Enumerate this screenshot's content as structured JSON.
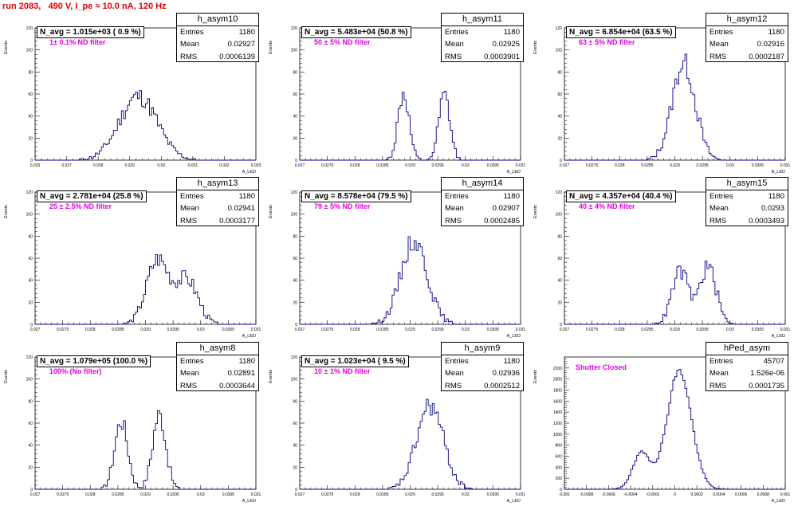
{
  "page_title": "run 2083,   490 V, I_pe ≈ 10.0 nA, 120 Hz",
  "y_axis_label": "Events",
  "x_axis_label": "A_LED",
  "stat_labels": {
    "entries": "Entries",
    "mean": "Mean",
    "rms": "RMS"
  },
  "colors": {
    "histogram": "#000080",
    "title": "#e00000",
    "filter_text": "#e000e0"
  },
  "chart_data": [
    {
      "type": "histogram",
      "name": "h_asym10",
      "stats": {
        "entries": "1180",
        "mean": "0.02927",
        "rms": "0.0006139"
      },
      "n_avg": "N_avg = 1.015e+03 ( 0.9 %)",
      "filter": "1± 0.1% ND filter",
      "xlim": [
        0.026,
        0.033
      ],
      "ylim": [
        0,
        120
      ],
      "x_ticks": [
        "0.026",
        "0.027",
        "0.028",
        "0.029",
        "0.03",
        "0.031",
        "0.032",
        "0.033"
      ],
      "y_ticks": [
        "0",
        "20",
        "40",
        "60",
        "80",
        "100",
        "120"
      ],
      "peaks": [
        {
          "mu": 0.02927,
          "sigma": 0.0006,
          "amp": 58
        }
      ],
      "seed": 11
    },
    {
      "type": "histogram",
      "name": "h_asym11",
      "stats": {
        "entries": "1180",
        "mean": "0.02925",
        "rms": "0.0003901"
      },
      "n_avg": "N_avg = 5.483e+04 (50.8 %)",
      "filter": "50 ± 5% ND filter",
      "xlim": [
        0.027,
        0.031
      ],
      "ylim": [
        0,
        120
      ],
      "x_ticks": [
        "0.027",
        "0.0275",
        "0.028",
        "0.0285",
        "0.029",
        "0.0295",
        "0.03",
        "0.0305",
        "0.031"
      ],
      "y_ticks": [
        "0",
        "20",
        "40",
        "60",
        "80",
        "100",
        "120"
      ],
      "peaks": [
        {
          "mu": 0.02888,
          "sigma": 0.0001,
          "amp": 60
        },
        {
          "mu": 0.02962,
          "sigma": 0.0001,
          "amp": 58
        }
      ],
      "seed": 12
    },
    {
      "type": "histogram",
      "name": "h_asym12",
      "stats": {
        "entries": "1180",
        "mean": "0.02916",
        "rms": "0.0002187"
      },
      "n_avg": "N_avg = 6.854e+04 (63.5 %)",
      "filter": "63 ± 5% ND filter",
      "xlim": [
        0.027,
        0.031
      ],
      "ylim": [
        0,
        120
      ],
      "x_ticks": [
        "0.027",
        "0.0275",
        "0.028",
        "0.0285",
        "0.029",
        "0.0295",
        "0.03",
        "0.0305",
        "0.031"
      ],
      "y_ticks": [
        "0",
        "20",
        "40",
        "60",
        "80",
        "100",
        "120"
      ],
      "peaks": [
        {
          "mu": 0.02916,
          "sigma": 0.00021,
          "amp": 88
        }
      ],
      "seed": 13
    },
    {
      "type": "histogram",
      "name": "h_asym13",
      "stats": {
        "entries": "1180",
        "mean": "0.02941",
        "rms": "0.0003177"
      },
      "n_avg": "N_avg = 2.781e+04 (25.8 %)",
      "filter": "25 ± 2.5% ND filter",
      "xlim": [
        0.027,
        0.031
      ],
      "ylim": [
        0,
        120
      ],
      "x_ticks": [
        "0.027",
        "0.0275",
        "0.028",
        "0.0285",
        "0.029",
        "0.0295",
        "0.03",
        "0.0305",
        "0.031"
      ],
      "y_ticks": [
        "0",
        "20",
        "40",
        "60",
        "80",
        "100",
        "120"
      ],
      "peaks": [
        {
          "mu": 0.02922,
          "sigma": 0.0002,
          "amp": 58
        },
        {
          "mu": 0.02975,
          "sigma": 0.0002,
          "amp": 40
        }
      ],
      "seed": 14
    },
    {
      "type": "histogram",
      "name": "h_asym14",
      "stats": {
        "entries": "1180",
        "mean": "0.02907",
        "rms": "0.0002485"
      },
      "n_avg": "N_avg = 8.578e+04 (79.5 %)",
      "filter": "79 ± 5% ND filter",
      "xlim": [
        0.027,
        0.031
      ],
      "ylim": [
        0,
        120
      ],
      "x_ticks": [
        "0.027",
        "0.0275",
        "0.028",
        "0.0285",
        "0.029",
        "0.0295",
        "0.03",
        "0.0305",
        "0.031"
      ],
      "y_ticks": [
        "0",
        "20",
        "40",
        "60",
        "80",
        "100",
        "120"
      ],
      "peaks": [
        {
          "mu": 0.02907,
          "sigma": 0.00024,
          "amp": 76
        }
      ],
      "seed": 15
    },
    {
      "type": "histogram",
      "name": "h_asym15",
      "stats": {
        "entries": "1180",
        "mean": "0.0293",
        "rms": "0.0003493"
      },
      "n_avg": "N_avg = 4.357e+04 (40.4 %)",
      "filter": "40 ± 4% ND filter",
      "xlim": [
        0.027,
        0.031
      ],
      "ylim": [
        0,
        120
      ],
      "x_ticks": [
        "0.027",
        "0.0275",
        "0.028",
        "0.0285",
        "0.029",
        "0.0295",
        "0.03",
        "0.0305",
        "0.031"
      ],
      "y_ticks": [
        "0",
        "20",
        "40",
        "60",
        "80",
        "100",
        "120"
      ],
      "peaks": [
        {
          "mu": 0.0291,
          "sigma": 0.00015,
          "amp": 48
        },
        {
          "mu": 0.0296,
          "sigma": 0.00015,
          "amp": 52
        }
      ],
      "seed": 16
    },
    {
      "type": "histogram",
      "name": "h_asym8",
      "stats": {
        "entries": "1180",
        "mean": "0.02891",
        "rms": "0.0003644"
      },
      "n_avg": "N_avg = 1.079e+05 (100.0 %)",
      "filter": "100% (No filter)",
      "xlim": [
        0.027,
        0.031
      ],
      "ylim": [
        0,
        120
      ],
      "x_ticks": [
        "0.027",
        "0.0275",
        "0.028",
        "0.0285",
        "0.029",
        "0.0295",
        "0.03",
        "0.0305",
        "0.031"
      ],
      "y_ticks": [
        "0",
        "20",
        "40",
        "60",
        "80",
        "100",
        "120"
      ],
      "peaks": [
        {
          "mu": 0.02856,
          "sigma": 0.00012,
          "amp": 62
        },
        {
          "mu": 0.02925,
          "sigma": 0.00012,
          "amp": 68
        }
      ],
      "seed": 17
    },
    {
      "type": "histogram",
      "name": "h_asym9",
      "stats": {
        "entries": "1180",
        "mean": "0.02936",
        "rms": "0.0002512"
      },
      "n_avg": "N_avg = 1.023e+04 ( 9.5 %)",
      "filter": "10 ± 1% ND filter",
      "xlim": [
        0.027,
        0.031
      ],
      "ylim": [
        0,
        120
      ],
      "x_ticks": [
        "0.027",
        "0.0275",
        "0.028",
        "0.0285",
        "0.029",
        "0.0295",
        "0.03",
        "0.0305",
        "0.031"
      ],
      "y_ticks": [
        "0",
        "20",
        "40",
        "60",
        "80",
        "100",
        "120"
      ],
      "peaks": [
        {
          "mu": 0.02936,
          "sigma": 0.00024,
          "amp": 76
        }
      ],
      "seed": 18
    },
    {
      "type": "histogram",
      "name": "hPed_asym",
      "stats": {
        "entries": "45707",
        "mean": "1.526e-06",
        "rms": "0.0001735"
      },
      "n_avg": "",
      "filter": "Shutter Closed",
      "xlim": [
        -0.001,
        0.001
      ],
      "ylim": [
        0,
        2400
      ],
      "x_ticks": [
        "-0.001",
        "-0.0008",
        "-0.0006",
        "-0.0004",
        "-0.0002",
        "0",
        "0.0002",
        "0.0004",
        "0.0006",
        "0.0008",
        "0.001"
      ],
      "y_ticks": [
        "0",
        "200",
        "400",
        "600",
        "800",
        "1000",
        "1200",
        "1400",
        "1600",
        "1800",
        "2000",
        "2200"
      ],
      "peaks": [
        {
          "mu": 4e-05,
          "sigma": 0.00011,
          "amp": 2150
        },
        {
          "mu": -0.0003,
          "sigma": 8e-05,
          "amp": 650
        }
      ],
      "seed": 19
    }
  ]
}
